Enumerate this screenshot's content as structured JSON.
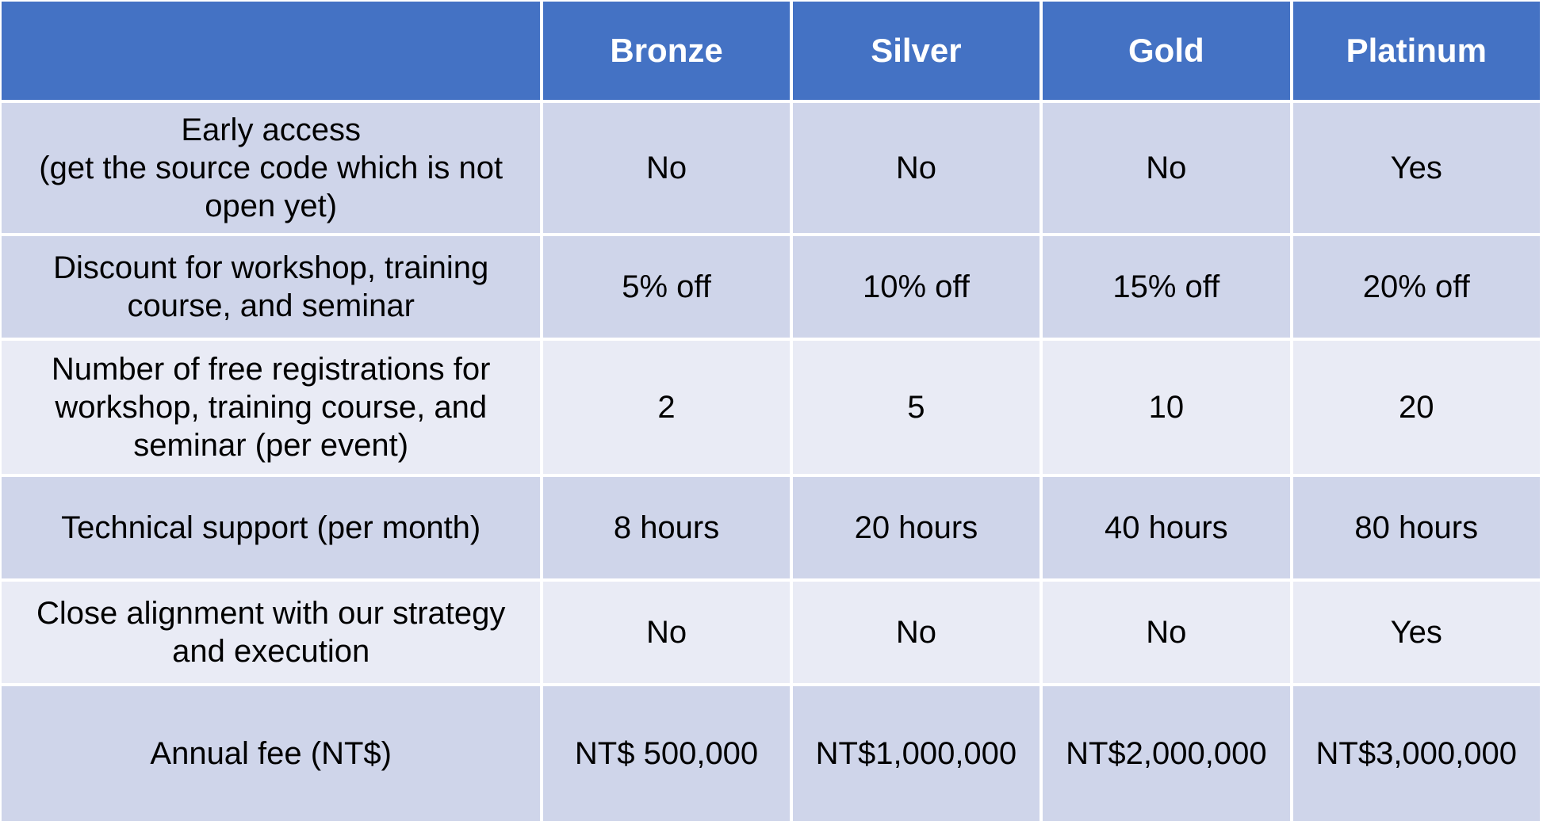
{
  "table": {
    "headers": [
      "",
      "Bronze",
      "Silver",
      "Gold",
      "Platinum"
    ],
    "rows": [
      {
        "feature": "Early access\n(get the source code which is not open yet)",
        "values": [
          "No",
          "No",
          "No",
          "Yes"
        ]
      },
      {
        "feature": "Discount for workshop, training course, and seminar",
        "values": [
          "5% off",
          "10% off",
          "15% off",
          "20% off"
        ]
      },
      {
        "feature": "Number of free registrations for workshop, training course, and seminar (per event)",
        "values": [
          "2",
          "5",
          "10",
          "20"
        ]
      },
      {
        "feature": "Technical support (per month)",
        "values": [
          "8 hours",
          "20 hours",
          "40 hours",
          "80 hours"
        ]
      },
      {
        "feature": "Close alignment with our strategy and execution",
        "values": [
          "No",
          "No",
          "No",
          "Yes"
        ]
      },
      {
        "feature": "Annual fee (NT$)",
        "values": [
          "NT$ 500,000",
          "NT$1,000,000",
          "NT$2,000,000",
          "NT$3,000,000"
        ]
      }
    ]
  },
  "colors": {
    "header": "#4472c4",
    "band_dark": "#cfd5ea",
    "band_light": "#e9ebf5"
  }
}
